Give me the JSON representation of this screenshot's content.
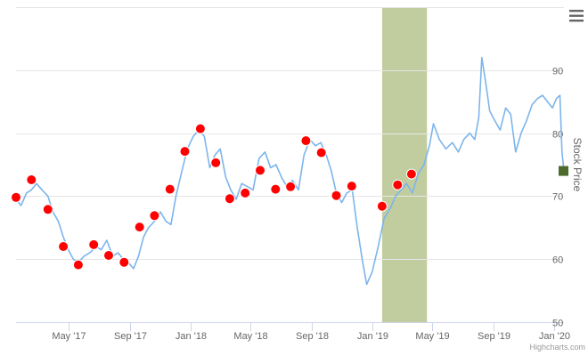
{
  "chart_data": {
    "type": "line",
    "ylabel": "Stock Price",
    "ylim": [
      50,
      100
    ],
    "y_ticks": [
      "50",
      "60",
      "70",
      "80",
      "90"
    ],
    "y_tick_values": [
      50,
      60,
      70,
      80,
      90
    ],
    "x_ticks": [
      {
        "date": "2017-05-01",
        "label": "May '17"
      },
      {
        "date": "2017-09-01",
        "label": "Sep '17"
      },
      {
        "date": "2018-01-01",
        "label": "Jan '18"
      },
      {
        "date": "2018-05-01",
        "label": "May '18"
      },
      {
        "date": "2018-09-01",
        "label": "Sep '18"
      },
      {
        "date": "2019-01-01",
        "label": "Jan '19"
      },
      {
        "date": "2019-05-01",
        "label": "May '19"
      },
      {
        "date": "2019-09-01",
        "label": "Sep '19"
      },
      {
        "date": "2020-01-01",
        "label": "Jan '20"
      }
    ],
    "xlim": [
      "2017-01-15",
      "2020-01-20"
    ],
    "grid": true,
    "series": [
      {
        "type": "line",
        "color": "#7cb5ec",
        "points": [
          [
            "2017-01-15",
            69.5
          ],
          [
            "2017-01-25",
            68.5
          ],
          [
            "2017-02-05",
            70.5
          ],
          [
            "2017-02-15",
            71.0
          ],
          [
            "2017-02-25",
            72.0
          ],
          [
            "2017-03-08",
            71.0
          ],
          [
            "2017-03-20",
            70.0
          ],
          [
            "2017-03-30",
            67.5
          ],
          [
            "2017-04-10",
            66.0
          ],
          [
            "2017-04-20",
            63.5
          ],
          [
            "2017-04-30",
            61.5
          ],
          [
            "2017-05-10",
            60.0
          ],
          [
            "2017-05-20",
            59.5
          ],
          [
            "2017-06-01",
            60.5
          ],
          [
            "2017-06-12",
            61.0
          ],
          [
            "2017-06-25",
            62.0
          ],
          [
            "2017-07-05",
            61.5
          ],
          [
            "2017-07-16",
            63.0
          ],
          [
            "2017-07-28",
            60.5
          ],
          [
            "2017-08-08",
            61.0
          ],
          [
            "2017-08-18",
            60.0
          ],
          [
            "2017-08-28",
            59.5
          ],
          [
            "2017-09-08",
            58.5
          ],
          [
            "2017-09-18",
            60.5
          ],
          [
            "2017-09-28",
            63.5
          ],
          [
            "2017-10-08",
            65.0
          ],
          [
            "2017-10-20",
            66.0
          ],
          [
            "2017-11-01",
            67.5
          ],
          [
            "2017-11-12",
            66.0
          ],
          [
            "2017-11-22",
            65.5
          ],
          [
            "2017-12-02",
            70.0
          ],
          [
            "2017-12-14",
            74.0
          ],
          [
            "2017-12-25",
            77.5
          ],
          [
            "2018-01-06",
            79.5
          ],
          [
            "2018-01-17",
            80.5
          ],
          [
            "2018-01-28",
            79.5
          ],
          [
            "2018-02-08",
            74.5
          ],
          [
            "2018-02-18",
            76.5
          ],
          [
            "2018-03-01",
            77.5
          ],
          [
            "2018-03-12",
            73.0
          ],
          [
            "2018-03-22",
            71.0
          ],
          [
            "2018-04-02",
            69.5
          ],
          [
            "2018-04-13",
            72.0
          ],
          [
            "2018-04-25",
            71.5
          ],
          [
            "2018-05-06",
            71.0
          ],
          [
            "2018-05-18",
            76.0
          ],
          [
            "2018-05-30",
            77.0
          ],
          [
            "2018-06-10",
            74.5
          ],
          [
            "2018-06-21",
            75.0
          ],
          [
            "2018-07-02",
            73.0
          ],
          [
            "2018-07-13",
            71.5
          ],
          [
            "2018-07-24",
            72.5
          ],
          [
            "2018-08-05",
            71.0
          ],
          [
            "2018-08-16",
            76.5
          ],
          [
            "2018-08-28",
            79.0
          ],
          [
            "2018-09-08",
            78.0
          ],
          [
            "2018-09-19",
            78.5
          ],
          [
            "2018-09-30",
            76.5
          ],
          [
            "2018-10-10",
            74.0
          ],
          [
            "2018-10-20",
            70.5
          ],
          [
            "2018-10-31",
            69.0
          ],
          [
            "2018-11-10",
            70.5
          ],
          [
            "2018-11-21",
            71.0
          ],
          [
            "2018-12-01",
            65.0
          ],
          [
            "2018-12-12",
            59.5
          ],
          [
            "2018-12-20",
            56.0
          ],
          [
            "2018-12-31",
            58.0
          ],
          [
            "2019-01-12",
            62.0
          ],
          [
            "2019-01-24",
            66.5
          ],
          [
            "2019-02-05",
            68.0
          ],
          [
            "2019-02-16",
            70.0
          ],
          [
            "2019-02-27",
            71.0
          ],
          [
            "2019-03-10",
            72.0
          ],
          [
            "2019-03-22",
            70.5
          ],
          [
            "2019-04-02",
            73.5
          ],
          [
            "2019-04-14",
            75.0
          ],
          [
            "2019-04-25",
            78.0
          ],
          [
            "2019-05-03",
            81.5
          ],
          [
            "2019-05-15",
            79.0
          ],
          [
            "2019-05-28",
            77.5
          ],
          [
            "2019-06-10",
            78.5
          ],
          [
            "2019-06-22",
            77.0
          ],
          [
            "2019-07-03",
            79.0
          ],
          [
            "2019-07-15",
            80.0
          ],
          [
            "2019-07-25",
            79.0
          ],
          [
            "2019-08-02",
            82.5
          ],
          [
            "2019-08-08",
            92.0
          ],
          [
            "2019-08-16",
            88.0
          ],
          [
            "2019-08-24",
            83.5
          ],
          [
            "2019-09-03",
            82.0
          ],
          [
            "2019-09-14",
            80.5
          ],
          [
            "2019-09-25",
            84.0
          ],
          [
            "2019-10-05",
            83.0
          ],
          [
            "2019-10-15",
            77.0
          ],
          [
            "2019-10-26",
            80.0
          ],
          [
            "2019-11-06",
            82.0
          ],
          [
            "2019-11-17",
            84.5
          ],
          [
            "2019-11-28",
            85.5
          ],
          [
            "2019-12-08",
            86.0
          ],
          [
            "2019-12-18",
            85.0
          ],
          [
            "2019-12-28",
            84.0
          ],
          [
            "2020-01-05",
            85.5
          ],
          [
            "2020-01-12",
            86.0
          ],
          [
            "2020-01-16",
            77.0
          ],
          [
            "2020-01-20",
            74.0
          ]
        ]
      },
      {
        "type": "scatter",
        "color": "#ff0000",
        "points": [
          [
            "2017-01-15",
            69.8
          ],
          [
            "2017-02-15",
            72.6
          ],
          [
            "2017-03-20",
            67.9
          ],
          [
            "2017-04-20",
            62.0
          ],
          [
            "2017-05-20",
            59.1
          ],
          [
            "2017-06-20",
            62.3
          ],
          [
            "2017-07-20",
            60.6
          ],
          [
            "2017-08-20",
            59.5
          ],
          [
            "2017-09-20",
            65.1
          ],
          [
            "2017-10-20",
            66.9
          ],
          [
            "2017-11-20",
            71.1
          ],
          [
            "2017-12-20",
            77.1
          ],
          [
            "2018-01-20",
            80.7
          ],
          [
            "2018-02-20",
            75.3
          ],
          [
            "2018-03-20",
            69.6
          ],
          [
            "2018-04-20",
            70.5
          ],
          [
            "2018-05-20",
            74.1
          ],
          [
            "2018-06-20",
            71.1
          ],
          [
            "2018-07-20",
            71.5
          ],
          [
            "2018-08-20",
            78.8
          ],
          [
            "2018-09-20",
            76.9
          ],
          [
            "2018-10-20",
            70.1
          ],
          [
            "2018-11-20",
            71.6
          ],
          [
            "2018-12-20",
            null
          ],
          [
            "2019-01-20",
            68.4
          ],
          [
            "2019-02-20",
            71.8
          ],
          [
            "2019-03-20",
            73.5
          ]
        ]
      }
    ],
    "shaded_band": {
      "from": "2019-01-20",
      "to": "2019-04-20",
      "color": "#c1cd9f"
    },
    "last_value_marker": {
      "value": 74.0,
      "color": "#4b6a2b"
    },
    "credits": "Highcharts.com"
  }
}
